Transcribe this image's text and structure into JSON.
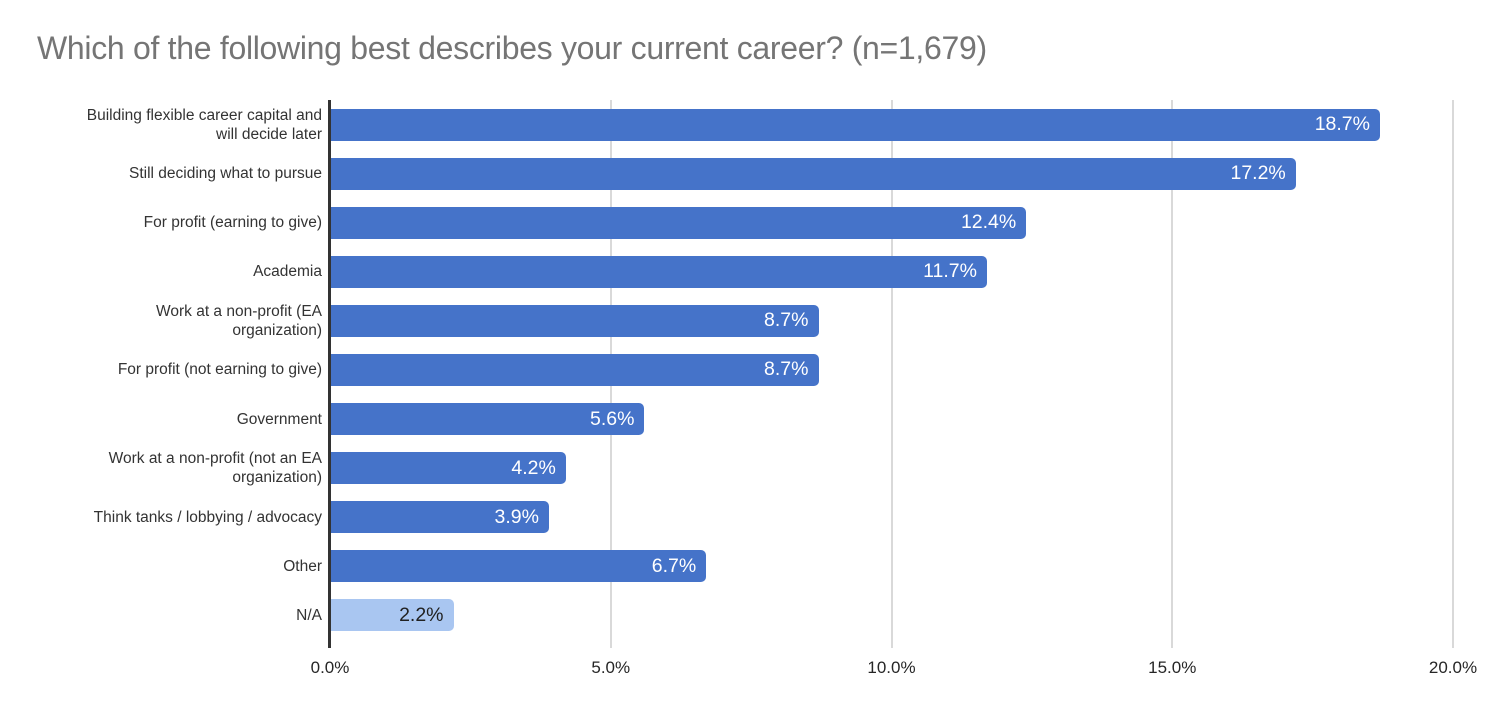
{
  "chart_data": {
    "type": "bar",
    "orientation": "horizontal",
    "title": "Which of the following best describes your current career? (n=1,679)",
    "categories": [
      "Building flexible career capital and will decide later",
      "Still deciding what to pursue",
      "For profit (earning to give)",
      "Academia",
      "Work at a non-profit (EA organization)",
      "For profit (not earning to give)",
      "Government",
      "Work at a non-profit (not an EA organization)",
      "Think tanks / lobbying / advocacy",
      "Other",
      "N/A"
    ],
    "category_display": [
      "Building flexible career capital and\nwill decide later",
      "Still deciding what to pursue",
      "For profit (earning to give)",
      "Academia",
      "Work at a non-profit (EA\norganization)",
      "For profit (not earning to give)",
      "Government",
      "Work at a non-profit (not an EA\norganization)",
      "Think tanks / lobbying / advocacy",
      "Other",
      "N/A"
    ],
    "values": [
      18.7,
      17.2,
      12.4,
      11.7,
      8.7,
      8.7,
      5.6,
      4.2,
      3.9,
      6.7,
      2.2
    ],
    "value_labels": [
      "18.7%",
      "17.2%",
      "12.4%",
      "11.7%",
      "8.7%",
      "8.7%",
      "5.6%",
      "4.2%",
      "3.9%",
      "6.7%",
      "2.2%"
    ],
    "na_category_index": 10,
    "xlim": [
      0,
      20
    ],
    "x_ticks": [
      "0.0%",
      "5.0%",
      "10.0%",
      "15.0%",
      "20.0%"
    ],
    "grid": true,
    "legend": "none",
    "colors": {
      "bar": "#4573c9",
      "na_bar": "#a9c6f1",
      "value_label": "#ffffff",
      "na_value_label": "#212121",
      "title": "#757575",
      "axis_line": "#333333",
      "gridline": "#d9d9d9",
      "category_label": "#333333",
      "tick_label": "#262626"
    }
  }
}
